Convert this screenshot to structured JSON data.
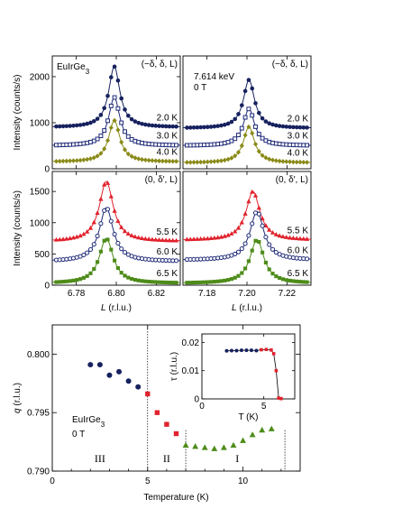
{
  "chart_data": [
    {
      "type": "scatter",
      "panel": "top-left",
      "plot_type": "intensity-vs-L",
      "sample_label": "EuIrGe3",
      "direction_label": "(−δ, δ, L)",
      "ylabel": "Intensity (counts/s)",
      "xlabel": "",
      "xlim": [
        6.768,
        6.832
      ],
      "ylim": [
        0,
        2450
      ],
      "xticks": [
        "6.78",
        "6.80",
        "6.82"
      ],
      "xticks_v": [
        6.78,
        6.8,
        6.82
      ],
      "yticks": [
        "0",
        "1000",
        "2000"
      ],
      "yticks_v": [
        0,
        1000,
        2000
      ],
      "show_xticklabels": false,
      "series": [
        {
          "name": "2.0 K",
          "color": "#16215e",
          "marker": "circle-filled",
          "base": 900,
          "amp": 1320,
          "center": 6.799,
          "width": 0.0034,
          "npts": 36
        },
        {
          "name": "3.0 K",
          "color": "#1f2b78",
          "marker": "square-open",
          "base": 500,
          "amp": 1050,
          "center": 6.799,
          "width": 0.0034,
          "npts": 36
        },
        {
          "name": "4.0 K",
          "color": "#8a8a18",
          "marker": "diamond-filled",
          "base": 150,
          "amp": 900,
          "center": 6.799,
          "width": 0.0034,
          "npts": 36
        }
      ]
    },
    {
      "type": "scatter",
      "panel": "top-right",
      "plot_type": "intensity-vs-L",
      "energy_label": "7.614 keV",
      "field_label": "0 T",
      "direction_label": "(−δ, δ, L)",
      "xlim": [
        7.168,
        7.232
      ],
      "ylim": [
        0,
        2450
      ],
      "xticks": [
        "7.18",
        "7.20",
        "7.22"
      ],
      "xticks_v": [
        7.18,
        7.2,
        7.22
      ],
      "show_xticklabels": false,
      "series": [
        {
          "name": "2.0 K",
          "color": "#16215e",
          "marker": "circle-filled",
          "base": 880,
          "amp": 1050,
          "center": 7.201,
          "width": 0.0034,
          "npts": 36
        },
        {
          "name": "3.0 K",
          "color": "#1f2b78",
          "marker": "square-open",
          "base": 500,
          "amp": 800,
          "center": 7.201,
          "width": 0.0034,
          "npts": 36
        },
        {
          "name": "4.0 K",
          "color": "#8a8a18",
          "marker": "diamond-filled",
          "base": 130,
          "amp": 780,
          "center": 7.201,
          "width": 0.0034,
          "npts": 36
        }
      ]
    },
    {
      "type": "scatter",
      "panel": "mid-left",
      "plot_type": "intensity-vs-L",
      "direction_label": "(0, δ′, L)",
      "ylabel": "Intensity (counts/s)",
      "xlabel": "L (r.l.u.)",
      "xlim": [
        6.768,
        6.832
      ],
      "ylim": [
        0,
        1820
      ],
      "xticks": [
        "6.78",
        "6.80",
        "6.82"
      ],
      "xticks_v": [
        6.78,
        6.8,
        6.82
      ],
      "yticks": [
        "0",
        "500",
        "1000",
        "1500"
      ],
      "yticks_v": [
        0,
        500,
        1000,
        1500
      ],
      "show_xticklabels": true,
      "series": [
        {
          "name": "5.5 K",
          "color": "#e0222c",
          "marker": "triangle-filled",
          "base": 700,
          "amp": 960,
          "center": 6.795,
          "width": 0.0042,
          "npts": 36
        },
        {
          "name": "6.0 K",
          "color": "#1f2b78",
          "marker": "circle-open",
          "base": 380,
          "amp": 860,
          "center": 6.795,
          "width": 0.0042,
          "npts": 36
        },
        {
          "name": "6.5 K",
          "color": "#4e8c1a",
          "marker": "square-filled",
          "base": 30,
          "amp": 720,
          "center": 6.795,
          "width": 0.0042,
          "npts": 36
        }
      ]
    },
    {
      "type": "scatter",
      "panel": "mid-right",
      "plot_type": "intensity-vs-L",
      "direction_label": "(0, δ′, L)",
      "xlabel": "L (r.l.u.)",
      "xlim": [
        7.168,
        7.232
      ],
      "ylim": [
        0,
        1820
      ],
      "xticks": [
        "7.18",
        "7.20",
        "7.22"
      ],
      "xticks_v": [
        7.18,
        7.2,
        7.22
      ],
      "show_xticklabels": true,
      "series": [
        {
          "name": "5.5 K",
          "color": "#e0222c",
          "marker": "triangle-filled",
          "base": 720,
          "amp": 780,
          "center": 7.203,
          "width": 0.0042,
          "npts": 36
        },
        {
          "name": "6.0 K",
          "color": "#1f2b78",
          "marker": "circle-open",
          "base": 400,
          "amp": 780,
          "center": 7.205,
          "width": 0.0042,
          "npts": 36
        },
        {
          "name": "6.5 K",
          "color": "#4e8c1a",
          "marker": "square-filled",
          "base": 30,
          "amp": 700,
          "center": 7.205,
          "width": 0.0042,
          "npts": 36
        }
      ]
    },
    {
      "type": "scatter",
      "panel": "bottom",
      "plot_type": "q-vs-temperature",
      "xlabel": "Temperature (K)",
      "ylabel": "q (r.l.u.)",
      "sample_label": "EuIrGe3",
      "field_label": "0 T",
      "xlim": [
        0,
        13
      ],
      "ylim": [
        0.79,
        0.8025
      ],
      "xticks": [
        "0",
        "5",
        "10"
      ],
      "xticks_v": [
        0,
        5,
        10
      ],
      "yticks": [
        "0.790",
        "0.795",
        "0.800"
      ],
      "yticks_v": [
        0.79,
        0.795,
        0.8
      ],
      "phase_boundaries": [
        5.0,
        7.0,
        12.2
      ],
      "phase_labels": [
        {
          "text": "III",
          "x": 2.5
        },
        {
          "text": "II",
          "x": 6.0
        },
        {
          "text": "I",
          "x": 9.7
        }
      ],
      "series": [
        {
          "name": "phase III",
          "color": "#16215e",
          "marker": "circle-filled",
          "x": [
            2.0,
            2.5,
            3.0,
            3.5,
            4.0,
            4.5
          ],
          "y": [
            0.7991,
            0.7991,
            0.7982,
            0.7985,
            0.7977,
            0.7972
          ]
        },
        {
          "name": "phase II",
          "color": "#e0222c",
          "marker": "square-filled",
          "x": [
            5.0,
            5.5,
            6.0,
            6.5
          ],
          "y": [
            0.7966,
            0.795,
            0.794,
            0.7932
          ]
        },
        {
          "name": "phase I",
          "color": "#4e8c1a",
          "marker": "triangle-filled",
          "x": [
            7.0,
            7.5,
            8.0,
            8.5,
            9.0,
            9.5,
            10.0,
            10.5,
            11.0,
            11.5
          ],
          "y": [
            0.7922,
            0.7921,
            0.792,
            0.7919,
            0.792,
            0.7922,
            0.7926,
            0.7931,
            0.7935,
            0.7936
          ]
        }
      ]
    },
    {
      "type": "scatter",
      "panel": "inset",
      "plot_type": "tau-vs-T",
      "xlabel": "T (K)",
      "ylabel": "τ (r.l.u.)",
      "xlim": [
        0,
        7.5
      ],
      "ylim": [
        0,
        0.023
      ],
      "xticks": [
        "0",
        "5"
      ],
      "xticks_v": [
        0,
        5
      ],
      "yticks": [
        "0",
        "0.01",
        "0.02"
      ],
      "yticks_v": [
        0,
        0.01,
        0.02
      ],
      "series": [
        {
          "name": "phase III",
          "color": "#16215e",
          "marker": "circle-filled",
          "x": [
            2.0,
            2.4,
            2.8,
            3.2,
            3.6,
            4.0,
            4.4
          ],
          "y": [
            0.017,
            0.0171,
            0.0171,
            0.0172,
            0.0172,
            0.0172,
            0.0171
          ]
        },
        {
          "name": "phase II",
          "color": "#e0222c",
          "marker": "square-filled",
          "x": [
            4.8,
            5.2,
            5.6,
            5.8,
            6.0,
            6.2,
            6.4
          ],
          "y": [
            0.0174,
            0.0175,
            0.0173,
            0.016,
            0.01,
            0.0003,
            0.0001
          ]
        }
      ]
    }
  ]
}
